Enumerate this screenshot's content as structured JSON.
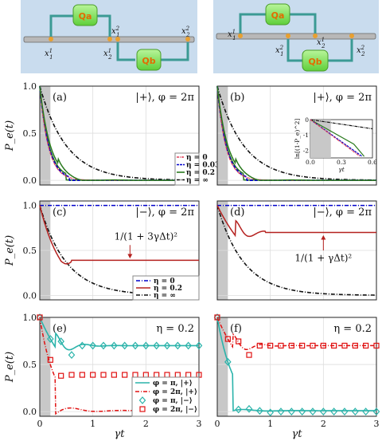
{
  "diagrams": [
    {
      "qa": "Qa",
      "qb": "Qb",
      "labels": [
        "x_1^1",
        "x_2^1",
        "x_1^2",
        "x_2^2"
      ]
    },
    {
      "qa": "Qa",
      "qb": "Qb",
      "labels": [
        "x_1^1",
        "x_2^1",
        "x_1^2",
        "x_2^2"
      ]
    }
  ],
  "xlabel": "γt",
  "inset": {
    "xlabel": "γt",
    "ylabel": "ln[(1-P_e)^2]",
    "xticks": [
      "0.0",
      "0.3",
      "0.6"
    ],
    "yticks": [
      "0",
      "-1",
      "-2"
    ]
  },
  "chart_data": [
    {
      "type": "line",
      "panel": "(a)",
      "title": "|+⟩, φ = 2π",
      "ylabel": "P_e(t)",
      "xlim": [
        0,
        3
      ],
      "ylim": [
        -0.05,
        1.0
      ],
      "xticks": [],
      "yticks": [
        "0.0",
        "0.5",
        "1.0"
      ],
      "series": [
        {
          "name": "η = 0",
          "color": "#e0405a"
        },
        {
          "name": "η = 0.03",
          "color": "#0000cc"
        },
        {
          "name": "η = 0.2",
          "color": "#2a7a1e"
        },
        {
          "name": "η = ∞",
          "color": "#111111"
        }
      ]
    },
    {
      "type": "line",
      "panel": "(b)",
      "title": "|+⟩, φ = 2π",
      "ylabel": "",
      "xlim": [
        0,
        3
      ],
      "ylim": [
        -0.05,
        1.0
      ],
      "xticks": [],
      "yticks": [],
      "series": [
        {
          "name": "η = 0",
          "color": "#e0405a"
        },
        {
          "name": "η = 0.03",
          "color": "#0000cc"
        },
        {
          "name": "η = 0.2",
          "color": "#2a7a1e"
        },
        {
          "name": "η = ∞",
          "color": "#111111"
        }
      ]
    },
    {
      "type": "line",
      "panel": "(c)",
      "title": "|−⟩, φ = 2π",
      "ylabel": "P_e(t)",
      "xlim": [
        0,
        3
      ],
      "ylim": [
        -0.05,
        1.05
      ],
      "xticks": [],
      "yticks": [
        "0.0",
        "0.5",
        "1.0"
      ],
      "annotation": "1/(1 + 3γΔt)²",
      "annotation_value": 0.39,
      "series": [
        {
          "name": "η = 0",
          "color": "#0000cc"
        },
        {
          "name": "η = 0.2",
          "color": "#b5211f"
        },
        {
          "name": "η = ∞",
          "color": "#111111"
        }
      ]
    },
    {
      "type": "line",
      "panel": "(d)",
      "title": "|−⟩, φ = 2π",
      "ylabel": "",
      "xlim": [
        0,
        3
      ],
      "ylim": [
        -0.05,
        1.05
      ],
      "xticks": [],
      "yticks": [],
      "annotation": "1/(1 + γΔt)²",
      "annotation_value": 0.7,
      "series": [
        {
          "name": "η = 0",
          "color": "#0000cc"
        },
        {
          "name": "η = 0.2",
          "color": "#b5211f"
        },
        {
          "name": "η = ∞",
          "color": "#111111"
        }
      ]
    },
    {
      "type": "line",
      "panel": "(e)",
      "title": "η = 0.2",
      "ylabel": "P_e(t)",
      "xlim": [
        0,
        3
      ],
      "ylim": [
        -0.05,
        1.0
      ],
      "xticks": [
        "0",
        "1",
        "2",
        "3"
      ],
      "yticks": [
        "0.0",
        "0.5",
        "1.0"
      ],
      "series": [
        {
          "name": "φ = π, |+⟩",
          "color": "#2ab3aa"
        },
        {
          "name": "φ = 2π, |+⟩",
          "color": "#e01010"
        },
        {
          "name": "φ = π, |−⟩",
          "color": "#2ab3aa"
        },
        {
          "name": "φ = 2π, |−⟩",
          "color": "#e01010"
        }
      ]
    },
    {
      "type": "line",
      "panel": "(f)",
      "title": "η = 0.2",
      "ylabel": "",
      "xlim": [
        0,
        3
      ],
      "ylim": [
        -0.05,
        1.0
      ],
      "xticks": [
        "0",
        "1",
        "2",
        "3"
      ],
      "yticks": [],
      "series": [
        {
          "name": "φ = π, |+⟩",
          "color": "#2ab3aa"
        },
        {
          "name": "φ = 2π, |+⟩",
          "color": "#e01010"
        },
        {
          "name": "φ = π, |−⟩",
          "color": "#2ab3aa"
        },
        {
          "name": "φ = 2π, |−⟩",
          "color": "#e01010"
        }
      ]
    }
  ]
}
